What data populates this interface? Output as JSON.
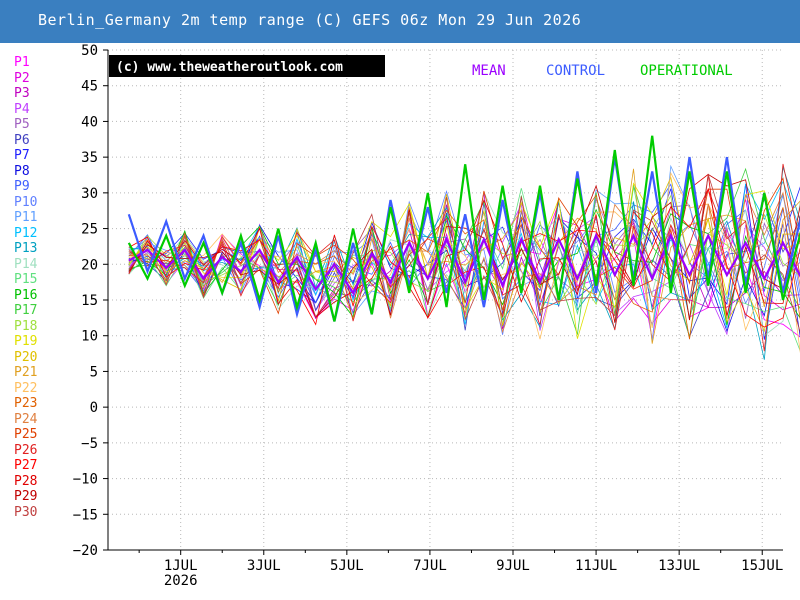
{
  "header": {
    "title": "Berlin_Germany 2m temp range (C) GEFS 06z Mon 29 Jun 2026"
  },
  "copyright": "(c) www.theweatheroutlook.com",
  "colors": {
    "header_bg": "#3a7fc0",
    "mean": "#9b00ff",
    "control": "#3c5cff",
    "operational": "#00cc00"
  },
  "chart_data": {
    "type": "line",
    "xlabel": "",
    "ylabel": "",
    "ylim": [
      -20,
      50
    ],
    "yticks": [
      50,
      45,
      40,
      35,
      30,
      25,
      20,
      15,
      10,
      5,
      0,
      -5,
      -10,
      -15,
      -20
    ],
    "x_start_day": 29.25,
    "x_end_day": 45.5,
    "xticks": [
      {
        "day": 31,
        "label": "1JUL",
        "sub": "2026"
      },
      {
        "day": 33,
        "label": "3JUL",
        "sub": ""
      },
      {
        "day": 35,
        "label": "5JUL",
        "sub": ""
      },
      {
        "day": 37,
        "label": "7JUL",
        "sub": ""
      },
      {
        "day": 39,
        "label": "9JUL",
        "sub": ""
      },
      {
        "day": 41,
        "label": "11JUL",
        "sub": ""
      },
      {
        "day": 43,
        "label": "13JUL",
        "sub": ""
      },
      {
        "day": 45,
        "label": "15JUL",
        "sub": ""
      }
    ],
    "grid": true,
    "legend_position": "top-right",
    "legend_labels": {
      "mean": "MEAN",
      "control": "CONTROL",
      "operational": "OPERATIONAL"
    },
    "series": [
      {
        "name": "MEAN",
        "color": "#9b00ff",
        "values": [
          20.5,
          22,
          19.5,
          22,
          18,
          21,
          19,
          22,
          17.5,
          21,
          16.5,
          20,
          16,
          21.5,
          17.5,
          23,
          18,
          23.5,
          17.5,
          23.5,
          17,
          23.5,
          17.5,
          23.5,
          18,
          24,
          18.5,
          24,
          18,
          24,
          18.5,
          24,
          18.5,
          23,
          18,
          23,
          18
        ]
      },
      {
        "name": "CONTROL",
        "color": "#3c5cff",
        "values": [
          27,
          19,
          26,
          18,
          24,
          16,
          23,
          14,
          24,
          13,
          22,
          12,
          23,
          13,
          29,
          17,
          28,
          16,
          27,
          14,
          29,
          16,
          30,
          15,
          33,
          16,
          35,
          18,
          33,
          17,
          35,
          18,
          35,
          17,
          30,
          16,
          27
        ]
      },
      {
        "name": "OPERATIONAL",
        "color": "#00cc00",
        "values": [
          23,
          18,
          24,
          17,
          23,
          16,
          24,
          15,
          25,
          14,
          23,
          12,
          25,
          13,
          28,
          16,
          30,
          14,
          34,
          15,
          31,
          16,
          31,
          15,
          32,
          17,
          36,
          17,
          38,
          16,
          33,
          17,
          33,
          16,
          30,
          15,
          25
        ]
      }
    ],
    "members": [
      {
        "name": "P1",
        "color": "#ff00ff"
      },
      {
        "name": "P2",
        "color": "#e000e0"
      },
      {
        "name": "P3",
        "color": "#c000c0"
      },
      {
        "name": "P4",
        "color": "#c040ff"
      },
      {
        "name": "P5",
        "color": "#a060c0"
      },
      {
        "name": "P6",
        "color": "#4040c0"
      },
      {
        "name": "P7",
        "color": "#2020ff"
      },
      {
        "name": "P8",
        "color": "#1010e0"
      },
      {
        "name": "P9",
        "color": "#4060ff"
      },
      {
        "name": "P10",
        "color": "#6080ff"
      },
      {
        "name": "P11",
        "color": "#60a0ff"
      },
      {
        "name": "P12",
        "color": "#00c0ff"
      },
      {
        "name": "P13",
        "color": "#00a0c0"
      },
      {
        "name": "P14",
        "color": "#a0e0c0"
      },
      {
        "name": "P15",
        "color": "#60e080"
      },
      {
        "name": "P16",
        "color": "#00c000"
      },
      {
        "name": "P17",
        "color": "#40d040"
      },
      {
        "name": "P18",
        "color": "#a0e040"
      },
      {
        "name": "P19",
        "color": "#e0e000"
      },
      {
        "name": "P20",
        "color": "#e0c000"
      },
      {
        "name": "P21",
        "color": "#e0a020"
      },
      {
        "name": "P22",
        "color": "#ffc060"
      },
      {
        "name": "P23",
        "color": "#e06000"
      },
      {
        "name": "P24",
        "color": "#e08040"
      },
      {
        "name": "P25",
        "color": "#e04000"
      },
      {
        "name": "P26",
        "color": "#e02020"
      },
      {
        "name": "P27",
        "color": "#ff0000"
      },
      {
        "name": "P28",
        "color": "#e00000"
      },
      {
        "name": "P29",
        "color": "#c00000"
      },
      {
        "name": "P30",
        "color": "#c04040"
      }
    ]
  }
}
